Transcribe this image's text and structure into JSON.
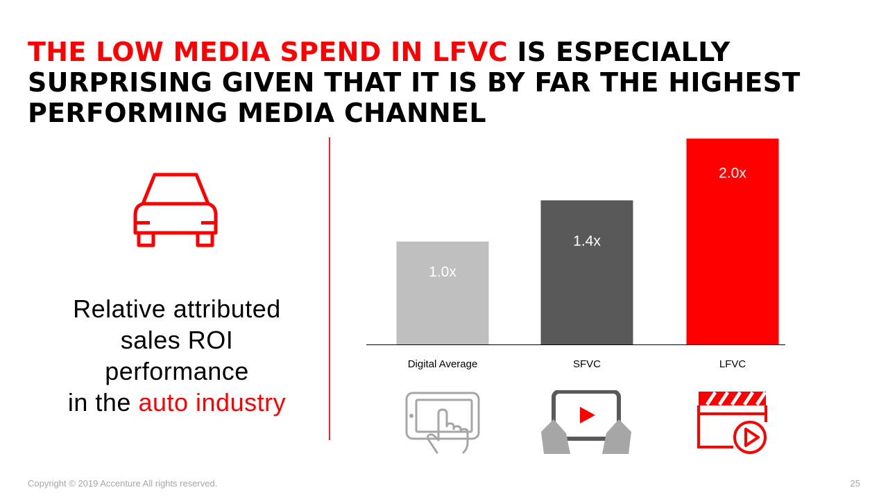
{
  "title": {
    "highlight": "THE LOW MEDIA SPEND IN LFVC",
    "rest": " IS ESPECIALLY SURPRISING GIVEN THAT IT IS BY FAR THE HIGHEST PERFORMING MEDIA CHANNEL"
  },
  "caption": {
    "line1": "Relative attributed",
    "line2": "sales ROI",
    "line3": "performance",
    "line4_prefix": "in the ",
    "line4_highlight": "auto industry"
  },
  "icons": {
    "left": "car-icon",
    "channels": [
      "tablet-touch-icon",
      "tablet-video-icon",
      "video-clapper-icon"
    ]
  },
  "colors": {
    "accent": "#ff0000",
    "digital_average": "#bfbfbf",
    "sfvc": "#595959",
    "lfvc": "#ff0000"
  },
  "chart_data": {
    "type": "bar",
    "categories": [
      "Digital Average",
      "SFVC",
      "LFVC"
    ],
    "values": [
      1.0,
      1.4,
      2.0
    ],
    "value_labels": [
      "1.0x",
      "1.4x",
      "2.0x"
    ],
    "bar_colors": [
      "#bfbfbf",
      "#595959",
      "#ff0000"
    ],
    "ylim": [
      0,
      2.0
    ],
    "grid": false
  },
  "footer": {
    "copyright": "Copyright © 2019 Accenture All rights reserved.",
    "page_number": "25"
  }
}
